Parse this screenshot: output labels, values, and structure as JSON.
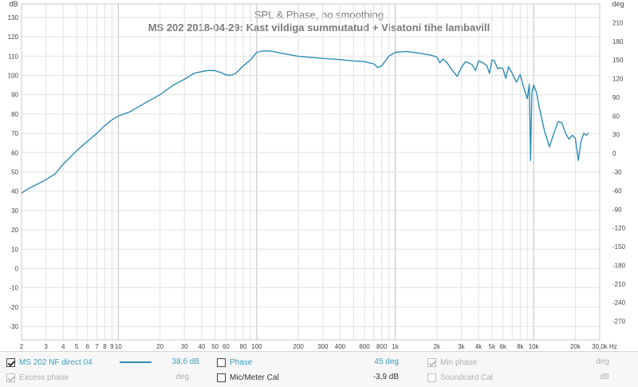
{
  "chart_data": {
    "type": "line",
    "title": "SPL & Phase, no smoothing",
    "subtitle": "MS 202 2018-04-29: Kast vildiga summutatud + Visatoni tihe lambavill",
    "y_left_unit": "dB",
    "y_right_unit": "deg",
    "x_unit": "Hz",
    "x_scale": "log",
    "xlim": [
      2,
      30000
    ],
    "ylim": [
      -37,
      137
    ],
    "y_right_lim": [
      -300,
      240
    ],
    "grid": true,
    "x_ticks": [
      {
        "v": 2,
        "label": "2"
      },
      {
        "v": 3,
        "label": "3"
      },
      {
        "v": 4,
        "label": "4"
      },
      {
        "v": 5,
        "label": "5"
      },
      {
        "v": 6,
        "label": "6"
      },
      {
        "v": 7,
        "label": "7"
      },
      {
        "v": 8,
        "label": "8"
      },
      {
        "v": 9,
        "label": "9"
      },
      {
        "v": 10,
        "label": "10"
      },
      {
        "v": 20,
        "label": "20"
      },
      {
        "v": 30,
        "label": "30"
      },
      {
        "v": 40,
        "label": "40"
      },
      {
        "v": 50,
        "label": "50"
      },
      {
        "v": 60,
        "label": "60"
      },
      {
        "v": 80,
        "label": "80"
      },
      {
        "v": 100,
        "label": "100"
      },
      {
        "v": 200,
        "label": "200"
      },
      {
        "v": 300,
        "label": "300"
      },
      {
        "v": 400,
        "label": "400"
      },
      {
        "v": 600,
        "label": "600"
      },
      {
        "v": 800,
        "label": "800"
      },
      {
        "v": 1000,
        "label": "1k"
      },
      {
        "v": 2000,
        "label": "2k"
      },
      {
        "v": 3000,
        "label": "3k"
      },
      {
        "v": 4000,
        "label": "4k"
      },
      {
        "v": 5000,
        "label": "5k"
      },
      {
        "v": 6000,
        "label": "6k"
      },
      {
        "v": 8000,
        "label": "8k"
      },
      {
        "v": 10000,
        "label": "10k"
      },
      {
        "v": 20000,
        "label": "20k"
      },
      {
        "v": 30000,
        "label": "30,0k Hz"
      }
    ],
    "y_ticks": [
      -30,
      -20,
      -10,
      0,
      10,
      20,
      30,
      40,
      50,
      60,
      70,
      80,
      90,
      100,
      110,
      120,
      130
    ],
    "y_right_ticks": [
      -270,
      -240,
      -210,
      -180,
      -150,
      -120,
      -90,
      -60,
      -30,
      0,
      30,
      60,
      90,
      120,
      150,
      180,
      210
    ],
    "series": [
      {
        "name": "MS 202 NF direct 04",
        "color": "#2e8db5",
        "x": [
          2,
          2.2,
          2.5,
          3,
          3.5,
          4,
          5,
          6,
          7,
          8,
          9,
          10,
          12,
          15,
          20,
          25,
          30,
          35,
          40,
          45,
          50,
          55,
          60,
          65,
          70,
          75,
          80,
          90,
          100,
          110,
          120,
          130,
          150,
          200,
          300,
          400,
          500,
          600,
          650,
          700,
          750,
          800,
          900,
          1000,
          1200,
          1500,
          1800,
          2000,
          2100,
          2200,
          2300,
          2400,
          2500,
          2800,
          3000,
          3200,
          3400,
          3600,
          3800,
          4000,
          4200,
          4400,
          4600,
          4800,
          5000,
          5200,
          5500,
          5700,
          6000,
          6300,
          6600,
          7000,
          7500,
          8000,
          8500,
          9000,
          9300,
          9500,
          9700,
          10000,
          10500,
          11000,
          12000,
          13000,
          14000,
          15000,
          16000,
          17000,
          18000,
          19000,
          20000,
          21000,
          22000,
          23000,
          24000,
          25000
        ],
        "y": [
          39,
          41,
          43,
          46,
          49,
          54,
          61,
          66,
          70,
          74,
          77,
          79,
          81,
          85,
          90,
          95,
          98,
          101,
          102,
          102.6,
          102.5,
          101.5,
          100.3,
          100,
          101,
          103,
          105,
          108,
          112,
          112.6,
          112.7,
          112.5,
          111.5,
          109.9,
          108.8,
          108.2,
          107.5,
          107.2,
          106.5,
          106,
          104,
          105,
          110,
          112,
          112.4,
          111.5,
          110.5,
          109.5,
          106.5,
          108.5,
          107.5,
          106,
          104,
          99.5,
          104,
          107,
          106.5,
          105.5,
          102.5,
          107.5,
          107,
          106,
          105,
          101,
          108,
          107.5,
          103.5,
          104,
          103.5,
          98.5,
          104.5,
          101,
          96.5,
          100.5,
          93.5,
          88,
          95.5,
          56,
          91,
          95,
          91,
          83,
          71,
          63,
          70,
          76,
          75.5,
          70,
          67,
          69,
          67.5,
          56,
          66,
          70,
          69,
          70
        ]
      }
    ]
  },
  "legend": {
    "row1": {
      "series_label": "MS 202 NF direct 04",
      "series_value": "38,6 dB",
      "phase_label": "Phase",
      "phase_value": "45 deg",
      "min_phase_label": "Min phase",
      "min_phase_unit": "deg"
    },
    "row2": {
      "excess_phase_label": "Excess phase",
      "excess_phase_unit": "deg",
      "mic_cal_label": "Mic/Meter Cal",
      "mic_cal_value": "-3,9 dB",
      "soundcard_cal_label": "Soundcard Cal",
      "soundcard_cal_unit": "dB"
    }
  }
}
